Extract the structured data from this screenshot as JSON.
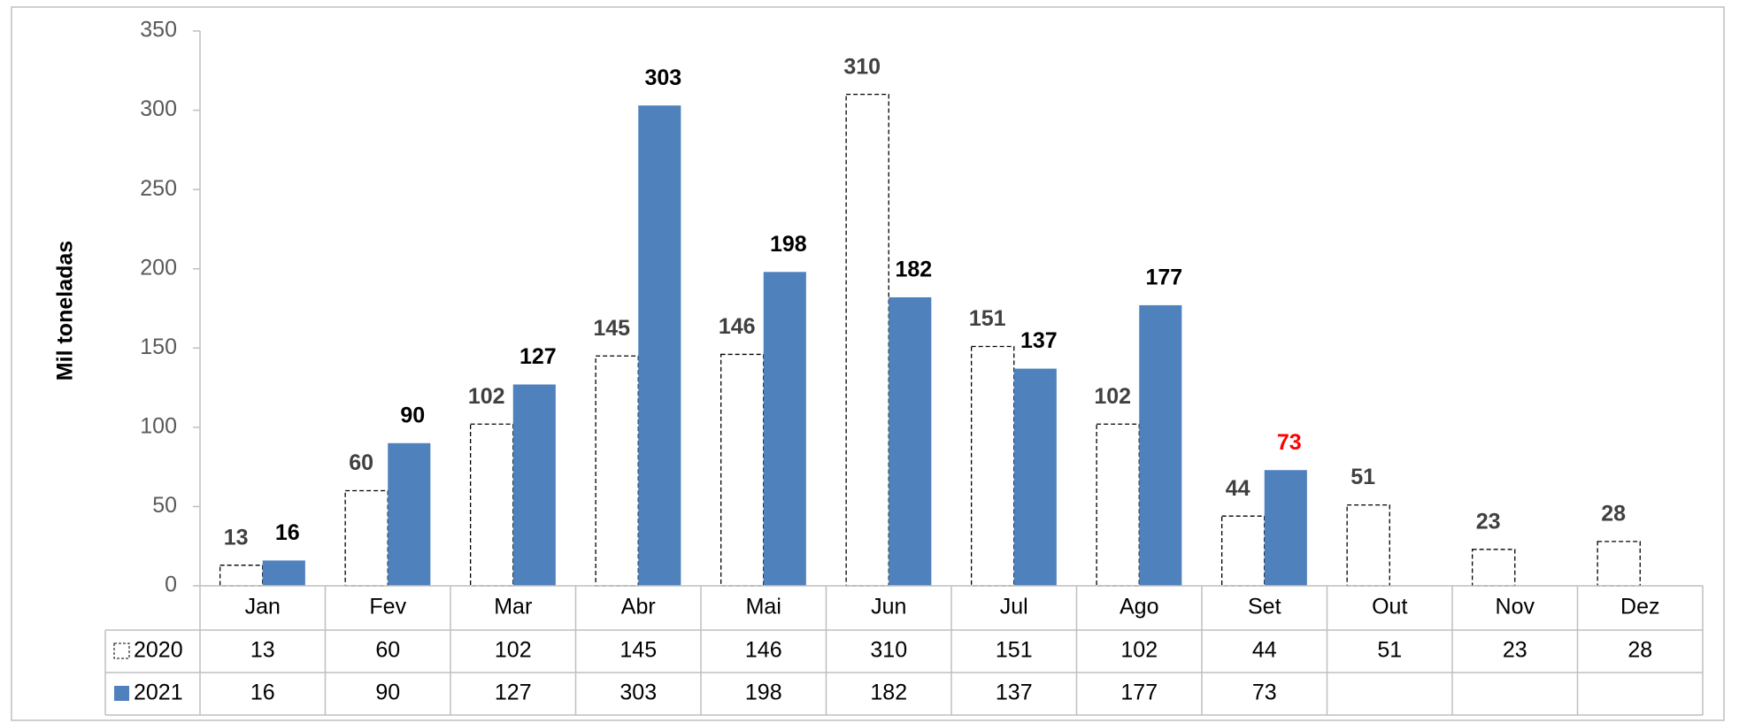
{
  "chart_data": {
    "type": "bar",
    "y_label": "Mil toneladas",
    "categories": [
      "Jan",
      "Fev",
      "Mar",
      "Abr",
      "Mai",
      "Jun",
      "Jul",
      "Ago",
      "Set",
      "Out",
      "Nov",
      "Dez"
    ],
    "series": [
      {
        "name": "2020",
        "color": "#ffffff",
        "label_color": "#404040",
        "style": "dashed",
        "values": [
          13,
          60,
          102,
          145,
          146,
          310,
          151,
          102,
          44,
          51,
          23,
          28
        ]
      },
      {
        "name": "2021",
        "color": "#4f81bd",
        "label_color": "#000000",
        "style": "solid",
        "values": [
          16,
          90,
          127,
          303,
          198,
          182,
          137,
          177,
          73,
          null,
          null,
          null
        ]
      }
    ],
    "highlight": {
      "series": 1,
      "index": 8,
      "color": "#ff0000"
    },
    "ylim": [
      0,
      350
    ],
    "yticks": [
      0,
      50,
      100,
      150,
      200,
      250,
      300,
      350
    ],
    "grid": false,
    "data_table": true
  }
}
